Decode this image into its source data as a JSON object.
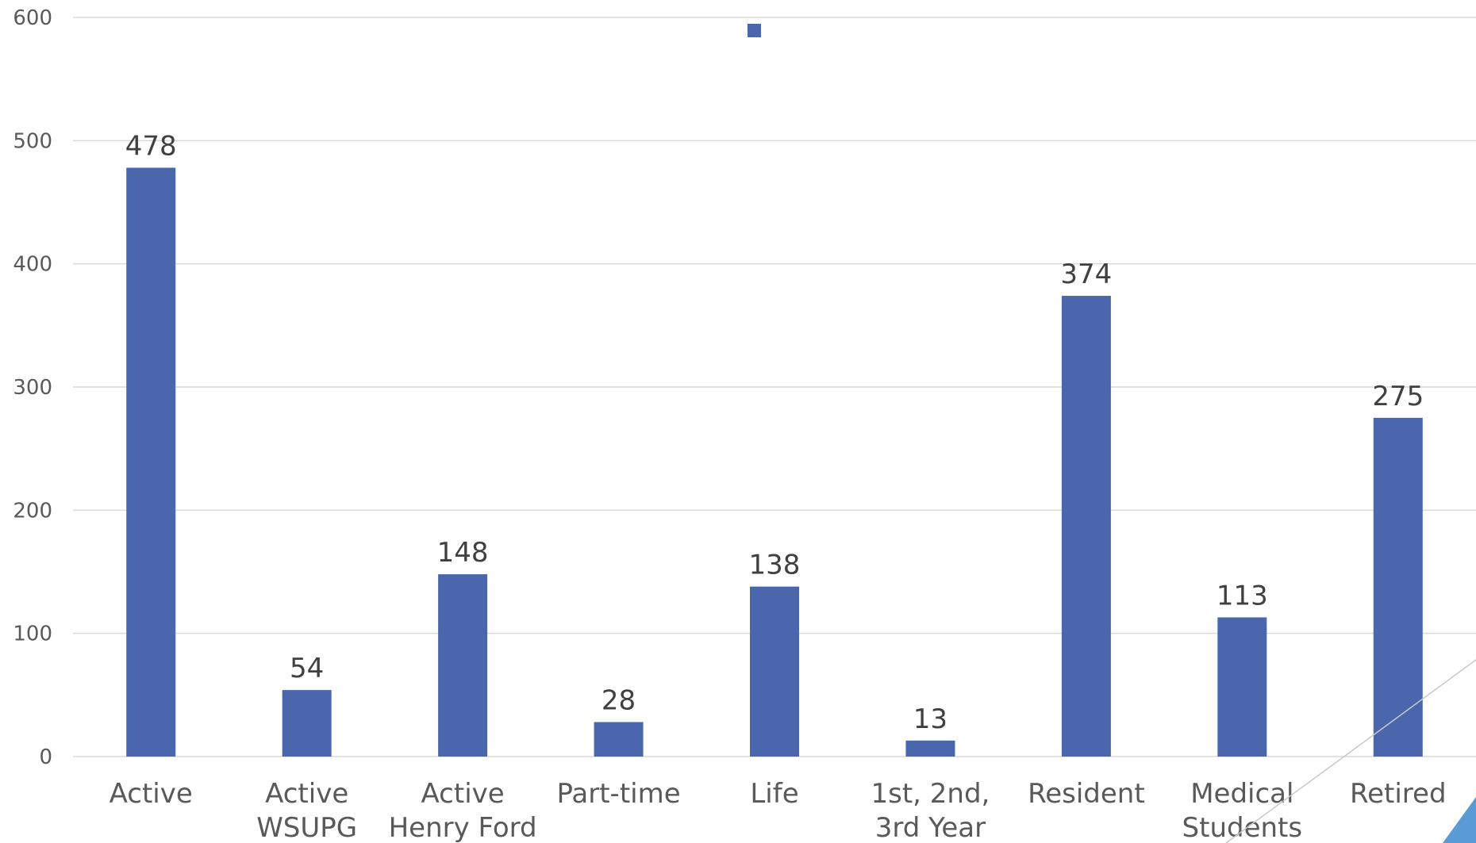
{
  "chart_data": {
    "type": "bar",
    "categories": [
      [
        "Active"
      ],
      [
        "Active",
        "WSUPG"
      ],
      [
        "Active",
        "Henry Ford"
      ],
      [
        "Part-time"
      ],
      [
        "Life"
      ],
      [
        "1st, 2nd,",
        "3rd Year"
      ],
      [
        "Resident"
      ],
      [
        "Medical",
        "Students"
      ],
      [
        "Retired"
      ]
    ],
    "values": [
      478,
      54,
      148,
      28,
      138,
      13,
      374,
      113,
      275
    ],
    "data_labels": [
      "478",
      "54",
      "148",
      "28",
      "138",
      "13",
      "374",
      "113",
      "275"
    ],
    "yticks": [
      "0",
      "100",
      "200",
      "300",
      "400",
      "500",
      "600"
    ],
    "ylim": [
      0,
      600
    ],
    "grid": true,
    "legend": "top-center",
    "colors": {
      "bar": "#4a67ae",
      "grid": "#d9d9d9",
      "accent": "#5b9bd5"
    }
  }
}
